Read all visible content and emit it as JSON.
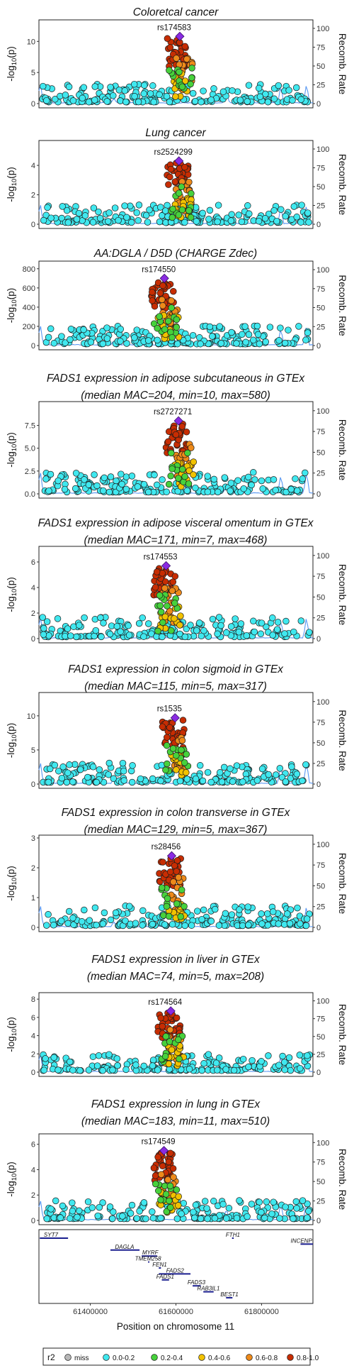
{
  "chart_data": {
    "type": "scatter",
    "x_label": "Position on chromosome 11",
    "x_range": [
      61280000,
      61920000
    ],
    "x_ticks": [
      61400000,
      61600000,
      61800000
    ],
    "x_tick_labels": [
      "61400000",
      "61600000",
      "61800000"
    ],
    "y_label": "-log10(p)",
    "y_label_parts": [
      "-log",
      "10",
      "(p)"
    ],
    "y2_label": "Recomb. Rate",
    "y2_range": [
      0,
      100
    ],
    "y2_ticks": [
      0,
      25,
      50,
      75,
      100
    ],
    "legend": {
      "title": "r2",
      "position": "bottom",
      "entries": [
        {
          "label": "miss",
          "color": "#b8b8b8"
        },
        {
          "label": "0.0-0.2",
          "color": "#40e8ef"
        },
        {
          "label": "0.2-0.4",
          "color": "#47d13c"
        },
        {
          "label": "0.4-0.6",
          "color": "#f2c200"
        },
        {
          "label": "0.6-0.8",
          "color": "#ee8a1a"
        },
        {
          "label": "0.8-1.0",
          "color": "#c72d02"
        }
      ]
    },
    "lead_snp_color": "#8a2be2",
    "panels": [
      {
        "title": [
          "Coloretcal cancer"
        ],
        "lead_snp": "rs174583",
        "lead_x": 61609000,
        "lead_y": 10.8,
        "y_range": [
          0,
          13
        ],
        "y_ticks": [
          0,
          5,
          10
        ]
      },
      {
        "title": [
          "Lung cancer"
        ],
        "lead_snp": "rs2524299",
        "lead_x": 61607000,
        "lead_y": 4.3,
        "y_range": [
          0,
          5.5
        ],
        "y_ticks": [
          0,
          2,
          4
        ]
      },
      {
        "title": [
          "AA:DGLA / D5D (CHARGE Zdec)"
        ],
        "lead_snp": "rs174550",
        "lead_x": 61573000,
        "lead_y": 700,
        "y_range": [
          0,
          850
        ],
        "y_ticks": [
          0,
          200,
          400,
          600,
          800
        ]
      },
      {
        "title": [
          "FADS1 expression in adipose subcutaneous in GTEx",
          "(median MAC=204, min=10, max=580)"
        ],
        "lead_snp": "rs2727271",
        "lead_x": 61606000,
        "lead_y": 8.0,
        "y_range": [
          0,
          9.8
        ],
        "y_ticks": [
          0,
          2.5,
          5,
          7.5
        ],
        "y_tick_labels": [
          "0.0",
          "2.5",
          "5.0",
          "7.5"
        ]
      },
      {
        "title": [
          "FADS1 expression in adipose visceral omentum in GTEx",
          "(median MAC=171, min=7, max=468)"
        ],
        "lead_snp": "rs174553",
        "lead_x": 61577000,
        "lead_y": 5.7,
        "y_range": [
          0,
          7
        ],
        "y_ticks": [
          0,
          2,
          4,
          6
        ]
      },
      {
        "title": [
          "FADS1 expression in colon sigmoid in GTEx",
          "(median MAC=115, min=5, max=317)"
        ],
        "lead_snp": "rs1535",
        "lead_x": 61598000,
        "lead_y": 9.7,
        "y_range": [
          0,
          13
        ],
        "y_ticks": [
          0,
          5,
          10
        ]
      },
      {
        "title": [
          "FADS1 expression in colon transverse in GTEx",
          "(median MAC=129, min=5, max=367)"
        ],
        "lead_snp": "rs28456",
        "lead_x": 61590000,
        "lead_y": 2.4,
        "y_range": [
          0,
          3
        ],
        "y_ticks": [
          0,
          1,
          2,
          3
        ]
      },
      {
        "title": [
          "FADS1 expression in liver in GTEx",
          "(median MAC=74, min=5, max=208)"
        ],
        "lead_snp": "rs174564",
        "lead_x": 61588000,
        "lead_y": 6.7,
        "y_range": [
          0,
          8.4
        ],
        "y_ticks": [
          0,
          2,
          4,
          6,
          8
        ]
      },
      {
        "title": [
          "FADS1 expression in lung in GTEx",
          "(median MAC=183, min=11, max=510)"
        ],
        "lead_snp": "rs174549",
        "lead_x": 61572000,
        "lead_y": 5.5,
        "y_range": [
          0,
          6.6
        ],
        "y_ticks": [
          0,
          2,
          4,
          6
        ]
      }
    ],
    "genes": [
      {
        "name": "SYT7",
        "start": 61282000,
        "end": 61348000,
        "row": 0,
        "label_x": 61308000
      },
      {
        "name": "FTH1",
        "start": 61731000,
        "end": 61735000,
        "row": 0,
        "label_x": 61733000
      },
      {
        "name": "INCENP",
        "start": 61891000,
        "end": 61920000,
        "row": 1,
        "label_x": 61893000
      },
      {
        "name": "DAGLA",
        "start": 61447000,
        "end": 61515000,
        "row": 2,
        "label_x": 61480000
      },
      {
        "name": "MYRF",
        "start": 61520000,
        "end": 61556000,
        "row": 3,
        "label_x": 61540000
      },
      {
        "name": "TMEM258",
        "start": 61535000,
        "end": 61538000,
        "row": 4,
        "label_x": 61535000
      },
      {
        "name": "FEN1",
        "start": 61560000,
        "end": 61565000,
        "row": 5,
        "label_x": 61562000
      },
      {
        "name": "FADS2",
        "start": 61560000,
        "end": 61634000,
        "row": 6,
        "label_x": 61598000
      },
      {
        "name": "FADS1",
        "start": 61567000,
        "end": 61584000,
        "row": 7,
        "label_x": 61575000
      },
      {
        "name": "FADS3",
        "start": 61639000,
        "end": 61658000,
        "row": 8,
        "label_x": 61648000
      },
      {
        "name": "RAB3IL1",
        "start": 61664000,
        "end": 61688000,
        "row": 9,
        "label_x": 61676000
      },
      {
        "name": "BEST1",
        "start": 61717000,
        "end": 61732000,
        "row": 10,
        "label_x": 61725000
      }
    ]
  }
}
